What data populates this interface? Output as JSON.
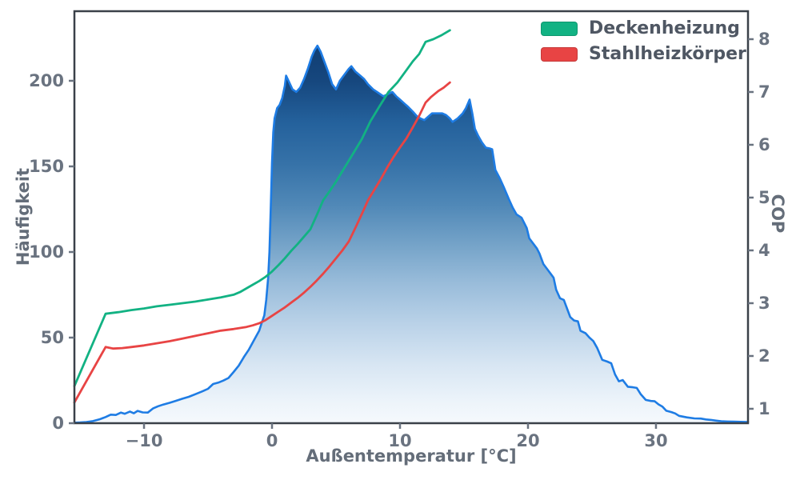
{
  "chart_data": {
    "type": "area",
    "title": "",
    "xlabel": "Außentemperatur [°C]",
    "ylabel_left": "Häufigkeit",
    "ylabel_right": "COP",
    "xlim": [
      -15.44,
      37.19
    ],
    "ylim_left": [
      0,
      240.65
    ],
    "ylim_right": [
      0.727,
      8.53
    ],
    "x_ticks": [
      -10,
      0,
      10,
      20,
      30
    ],
    "y_ticks_left": [
      0,
      50,
      100,
      150,
      200
    ],
    "y_ticks_right": [
      1,
      2,
      3,
      4,
      5,
      6,
      7,
      8
    ],
    "grid": false,
    "colors": {
      "spine": "#3a4149",
      "tick_text": "#6a7380",
      "axis_label_text": "#646d79",
      "legend_text": "#4f5763",
      "histogram_edge": "#1e7ce4",
      "deckenheizung": "#12b283",
      "stahlheizkoerper": "#e84444"
    },
    "fill_gradient": [
      [
        0.0,
        "#0a3366"
      ],
      [
        0.08,
        "#103d72"
      ],
      [
        0.17,
        "#16477e"
      ],
      [
        0.27,
        "#24619c"
      ],
      [
        0.37,
        "#3672a8"
      ],
      [
        0.47,
        "#5088b7"
      ],
      [
        0.57,
        "#76a4c9"
      ],
      [
        0.66,
        "#99bcda"
      ],
      [
        0.76,
        "#bad2e8"
      ],
      [
        0.86,
        "#d8e6f3"
      ],
      [
        0.95,
        "#edf4fa"
      ],
      [
        1.0,
        "#f5f9fd"
      ]
    ],
    "legend": {
      "position": "upper right",
      "entries": [
        {
          "label": "Deckenheizung",
          "color": "#12b283"
        },
        {
          "label": "Stahlheizkörper",
          "color": "#e84444"
        }
      ]
    },
    "histogram": {
      "name": "Häufigkeit der Außentemperatur",
      "axis": "left",
      "points": [
        [
          -15.44,
          0.3
        ],
        [
          -15,
          0.4
        ],
        [
          -14.5,
          0.7
        ],
        [
          -14,
          1.2
        ],
        [
          -13.5,
          2.2
        ],
        [
          -13,
          3.6
        ],
        [
          -12.6,
          5
        ],
        [
          -12.2,
          4.8
        ],
        [
          -11.8,
          6.2
        ],
        [
          -11.5,
          5.5
        ],
        [
          -11.1,
          6.8
        ],
        [
          -10.8,
          5.8
        ],
        [
          -10.5,
          7.2
        ],
        [
          -10.1,
          6.3
        ],
        [
          -9.7,
          6.2
        ],
        [
          -9.3,
          8.6
        ],
        [
          -8.9,
          9.9
        ],
        [
          -8.5,
          10.9
        ],
        [
          -8,
          11.9
        ],
        [
          -7.5,
          13.1
        ],
        [
          -7,
          14.3
        ],
        [
          -6.5,
          15.4
        ],
        [
          -6,
          16.9
        ],
        [
          -5.5,
          18.4
        ],
        [
          -5,
          20.1
        ],
        [
          -4.6,
          22.9
        ],
        [
          -4.2,
          23.7
        ],
        [
          -3.8,
          24.9
        ],
        [
          -3.4,
          26.4
        ],
        [
          -3,
          29.9
        ],
        [
          -2.6,
          33.6
        ],
        [
          -2.2,
          38.6
        ],
        [
          -1.8,
          43.1
        ],
        [
          -1.4,
          48.6
        ],
        [
          -1,
          54
        ],
        [
          -0.8,
          58.7
        ],
        [
          -0.6,
          63
        ],
        [
          -0.45,
          72
        ],
        [
          -0.3,
          85
        ],
        [
          -0.2,
          100
        ],
        [
          -0.1,
          125
        ],
        [
          0,
          152
        ],
        [
          0.1,
          170
        ],
        [
          0.2,
          178
        ],
        [
          0.4,
          184
        ],
        [
          0.6,
          186
        ],
        [
          0.8,
          190
        ],
        [
          1,
          197
        ],
        [
          1.1,
          203
        ],
        [
          1.35,
          199
        ],
        [
          1.6,
          195
        ],
        [
          1.9,
          193.5
        ],
        [
          2.2,
          196
        ],
        [
          2.5,
          201
        ],
        [
          2.8,
          207
        ],
        [
          3.1,
          214
        ],
        [
          3.3,
          217.5
        ],
        [
          3.55,
          220.5
        ],
        [
          3.8,
          217
        ],
        [
          4.1,
          211
        ],
        [
          4.4,
          205
        ],
        [
          4.7,
          198
        ],
        [
          5,
          195
        ],
        [
          5.3,
          200
        ],
        [
          5.7,
          204
        ],
        [
          6,
          207
        ],
        [
          6.2,
          208.5
        ],
        [
          6.5,
          205.5
        ],
        [
          6.9,
          203
        ],
        [
          7.2,
          201
        ],
        [
          7.5,
          198
        ],
        [
          7.9,
          195
        ],
        [
          8.3,
          193
        ],
        [
          8.7,
          191
        ],
        [
          9,
          192
        ],
        [
          9.4,
          193.5
        ],
        [
          9.7,
          191
        ],
        [
          10,
          189
        ],
        [
          10.3,
          187
        ],
        [
          10.6,
          185
        ],
        [
          11,
          182
        ],
        [
          11.3,
          179.5
        ],
        [
          11.6,
          178
        ],
        [
          11.9,
          177
        ],
        [
          12.2,
          179
        ],
        [
          12.5,
          181
        ],
        [
          12.9,
          181
        ],
        [
          13.3,
          181
        ],
        [
          13.6,
          180
        ],
        [
          13.9,
          178
        ],
        [
          14.1,
          176
        ],
        [
          14.5,
          178
        ],
        [
          14.9,
          181
        ],
        [
          15.15,
          184
        ],
        [
          15.44,
          189
        ],
        [
          15.65,
          181
        ],
        [
          15.85,
          172
        ],
        [
          16.1,
          168
        ],
        [
          16.4,
          164
        ],
        [
          16.7,
          161
        ],
        [
          17,
          160.5
        ],
        [
          17.2,
          160
        ],
        [
          17.45,
          148
        ],
        [
          17.8,
          143
        ],
        [
          18.1,
          138
        ],
        [
          18.5,
          131
        ],
        [
          18.8,
          126
        ],
        [
          19.1,
          122
        ],
        [
          19.5,
          120
        ],
        [
          19.9,
          114
        ],
        [
          20.1,
          108
        ],
        [
          20.4,
          105
        ],
        [
          20.7,
          102
        ],
        [
          20.9,
          99
        ],
        [
          21.2,
          93
        ],
        [
          21.5,
          90
        ],
        [
          21.8,
          87
        ],
        [
          22,
          85
        ],
        [
          22.2,
          78
        ],
        [
          22.5,
          73
        ],
        [
          22.8,
          72
        ],
        [
          23,
          68
        ],
        [
          23.3,
          62
        ],
        [
          23.6,
          60
        ],
        [
          23.9,
          59.5
        ],
        [
          24.1,
          54
        ],
        [
          24.5,
          52.5
        ],
        [
          24.8,
          50
        ],
        [
          25.1,
          48
        ],
        [
          25.4,
          44
        ],
        [
          25.8,
          37
        ],
        [
          26.2,
          36
        ],
        [
          26.5,
          35
        ],
        [
          26.8,
          28.5
        ],
        [
          27.1,
          24.5
        ],
        [
          27.4,
          25.2
        ],
        [
          27.8,
          21.3
        ],
        [
          28.2,
          21
        ],
        [
          28.5,
          20.6
        ],
        [
          28.8,
          17
        ],
        [
          29.2,
          13.6
        ],
        [
          29.6,
          13
        ],
        [
          29.9,
          12.8
        ],
        [
          30.2,
          11
        ],
        [
          30.5,
          9.7
        ],
        [
          30.8,
          7.3
        ],
        [
          31.2,
          6.5
        ],
        [
          31.5,
          5.7
        ],
        [
          31.8,
          4.3
        ],
        [
          32.4,
          3.4
        ],
        [
          33,
          2.8
        ],
        [
          33.5,
          2.7
        ],
        [
          33.9,
          2.2
        ],
        [
          34.3,
          1.9
        ],
        [
          34.7,
          1.5
        ],
        [
          35.1,
          1.1
        ],
        [
          35.6,
          1
        ],
        [
          36.1,
          0.9
        ],
        [
          36.6,
          0.8
        ],
        [
          37.19,
          0.7
        ]
      ]
    },
    "series": [
      {
        "name": "Stahlheizkörper",
        "axis": "right",
        "color": "#e84444",
        "points": [
          [
            -15.44,
            1.12
          ],
          [
            -13,
            2.17
          ],
          [
            -12.4,
            2.14
          ],
          [
            -11.7,
            2.15
          ],
          [
            -11,
            2.17
          ],
          [
            -10,
            2.2
          ],
          [
            -9,
            2.24
          ],
          [
            -8,
            2.28
          ],
          [
            -7,
            2.33
          ],
          [
            -6,
            2.38
          ],
          [
            -5,
            2.43
          ],
          [
            -4,
            2.48
          ],
          [
            -3,
            2.51
          ],
          [
            -2.5,
            2.53
          ],
          [
            -2,
            2.55
          ],
          [
            -1.5,
            2.58
          ],
          [
            -1,
            2.62
          ],
          [
            -0.5,
            2.68
          ],
          [
            0,
            2.76
          ],
          [
            0.5,
            2.84
          ],
          [
            1,
            2.92
          ],
          [
            1.5,
            3.01
          ],
          [
            2,
            3.1
          ],
          [
            2.5,
            3.2
          ],
          [
            3,
            3.31
          ],
          [
            3.5,
            3.43
          ],
          [
            4,
            3.56
          ],
          [
            4.5,
            3.7
          ],
          [
            5,
            3.85
          ],
          [
            5.5,
            4.0
          ],
          [
            6,
            4.17
          ],
          [
            6.5,
            4.42
          ],
          [
            7,
            4.68
          ],
          [
            7.5,
            4.95
          ],
          [
            8,
            5.15
          ],
          [
            8.5,
            5.35
          ],
          [
            9,
            5.57
          ],
          [
            9.5,
            5.77
          ],
          [
            10,
            5.95
          ],
          [
            10.5,
            6.12
          ],
          [
            11,
            6.33
          ],
          [
            11.5,
            6.55
          ],
          [
            12,
            6.8
          ],
          [
            12.4,
            6.9
          ],
          [
            13,
            7.02
          ],
          [
            13.4,
            7.08
          ],
          [
            13.9,
            7.18
          ]
        ]
      },
      {
        "name": "Deckenheizung",
        "axis": "right",
        "color": "#12b283",
        "points": [
          [
            -15.44,
            1.43
          ],
          [
            -13,
            2.8
          ],
          [
            -12,
            2.83
          ],
          [
            -11,
            2.87
          ],
          [
            -10,
            2.9
          ],
          [
            -9,
            2.94
          ],
          [
            -8,
            2.97
          ],
          [
            -7,
            3.0
          ],
          [
            -6,
            3.03
          ],
          [
            -5,
            3.07
          ],
          [
            -4,
            3.11
          ],
          [
            -3,
            3.16
          ],
          [
            -2.5,
            3.21
          ],
          [
            -2,
            3.28
          ],
          [
            -1.5,
            3.35
          ],
          [
            -1,
            3.42
          ],
          [
            -0.5,
            3.5
          ],
          [
            0,
            3.6
          ],
          [
            0.5,
            3.72
          ],
          [
            1,
            3.85
          ],
          [
            1.5,
            3.99
          ],
          [
            2,
            4.12
          ],
          [
            2.5,
            4.26
          ],
          [
            3,
            4.4
          ],
          [
            3.5,
            4.67
          ],
          [
            4,
            4.95
          ],
          [
            4.5,
            5.12
          ],
          [
            5,
            5.3
          ],
          [
            5.5,
            5.5
          ],
          [
            6,
            5.7
          ],
          [
            6.5,
            5.9
          ],
          [
            7,
            6.1
          ],
          [
            7.7,
            6.45
          ],
          [
            8.4,
            6.73
          ],
          [
            9.1,
            7.0
          ],
          [
            9.8,
            7.18
          ],
          [
            10.4,
            7.38
          ],
          [
            11,
            7.58
          ],
          [
            11.5,
            7.72
          ],
          [
            12,
            7.95
          ],
          [
            12.6,
            8.0
          ],
          [
            13.2,
            8.07
          ],
          [
            13.9,
            8.17
          ]
        ]
      }
    ]
  }
}
